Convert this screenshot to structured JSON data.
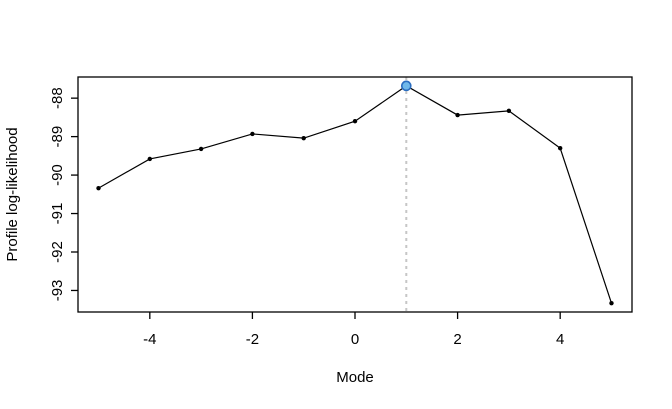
{
  "figure": {
    "background_color": "#ffffff",
    "frame_color": "#000000"
  },
  "chart_data": {
    "type": "line",
    "title": "",
    "xlabel": "Mode",
    "ylabel": "Profile log-likelihood",
    "x": [
      -5,
      -4,
      -3,
      -2,
      -1,
      0,
      1,
      2,
      3,
      4,
      5
    ],
    "y": [
      -90.34,
      -89.58,
      -89.32,
      -88.93,
      -89.04,
      -88.6,
      -87.68,
      -88.44,
      -88.33,
      -89.3,
      -93.33
    ],
    "xlim": [
      -5.4,
      5.4
    ],
    "ylim": [
      -93.56,
      -87.45
    ],
    "x_ticks": [
      -4,
      -2,
      0,
      2,
      4
    ],
    "y_ticks": [
      -93,
      -92,
      -91,
      -90,
      -89,
      -88
    ],
    "grid": false,
    "legend_position": "none",
    "line_color": "#000000",
    "point_color": "#000000",
    "highlight_point": {
      "x": 1,
      "y": -87.68,
      "fill": "#6fb8ea",
      "stroke": "#2a6dc0"
    },
    "vline": {
      "x": 1,
      "color": "#c6c6c6",
      "style": "dotted"
    }
  }
}
